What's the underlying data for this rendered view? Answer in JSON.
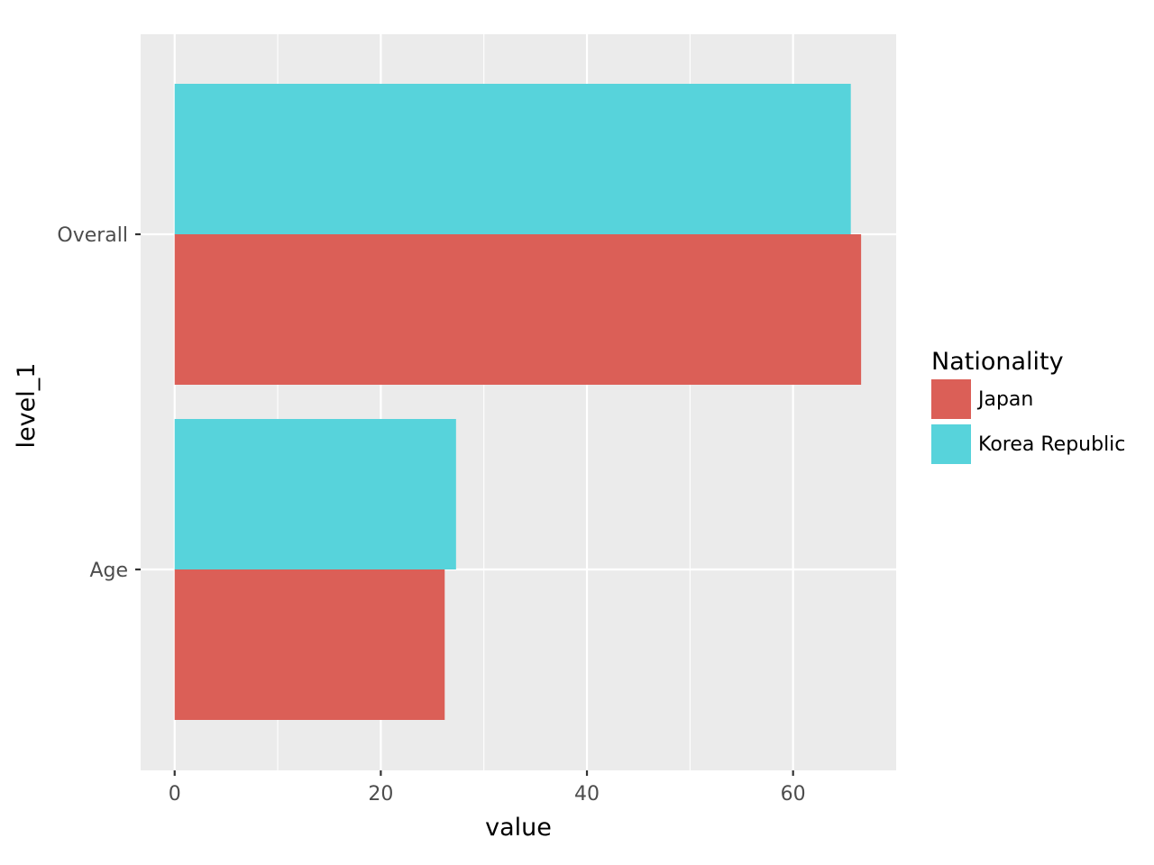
{
  "chart_data": {
    "type": "bar",
    "orientation": "horizontal",
    "categories": [
      "Age",
      "Overall"
    ],
    "series": [
      {
        "name": "Japan",
        "color": "#db5f57",
        "values": [
          26.2,
          66.6
        ]
      },
      {
        "name": "Korea Republic",
        "color": "#57d3db",
        "values": [
          27.3,
          65.6
        ]
      }
    ],
    "xlabel": "value",
    "ylabel": "level_1",
    "xlim": [
      -3.3,
      70
    ],
    "x_ticks": [
      0,
      20,
      40,
      60
    ],
    "x_tick_labels": [
      "0",
      "20",
      "40",
      "60"
    ],
    "grid": true,
    "legend": {
      "title": "Nationality",
      "position": "right"
    },
    "panel_background": "#ebebeb",
    "grid_color": "#ffffff"
  }
}
